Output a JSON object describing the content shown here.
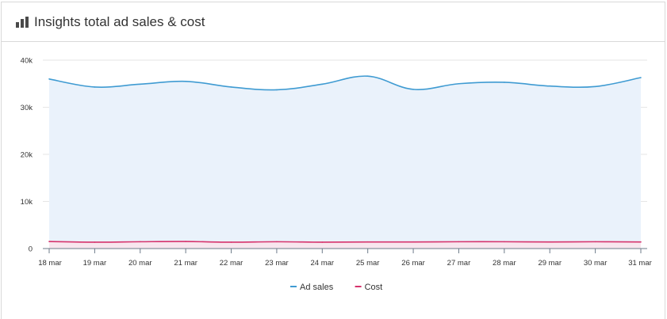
{
  "header": {
    "title": "Insights total ad sales & cost",
    "icon": "bar-chart-icon"
  },
  "chart_data": {
    "type": "area",
    "title": "",
    "xlabel": "",
    "ylabel": "",
    "categories": [
      "18 mar",
      "19 mar",
      "20 mar",
      "21 mar",
      "22 mar",
      "23 mar",
      "24 mar",
      "25 mar",
      "26 mar",
      "27 mar",
      "28 mar",
      "29 mar",
      "30 mar",
      "31 mar"
    ],
    "y_ticks": [
      "0",
      "10k",
      "20k",
      "30k",
      "40k"
    ],
    "ylim": [
      0,
      40000
    ],
    "grid": true,
    "legend_position": "bottom-center",
    "series": [
      {
        "name": "Ad sales",
        "color": "#3f9bd2",
        "fill": "#eaf2fb",
        "values": [
          36000,
          34300,
          34900,
          35500,
          34300,
          33700,
          34900,
          36600,
          33800,
          35000,
          35300,
          34500,
          34400,
          36300
        ]
      },
      {
        "name": "Cost",
        "color": "#d6336c",
        "fill": "#f8e6ee",
        "values": [
          1500,
          1350,
          1450,
          1500,
          1350,
          1450,
          1350,
          1400,
          1400,
          1450,
          1450,
          1400,
          1450,
          1400
        ]
      }
    ]
  }
}
